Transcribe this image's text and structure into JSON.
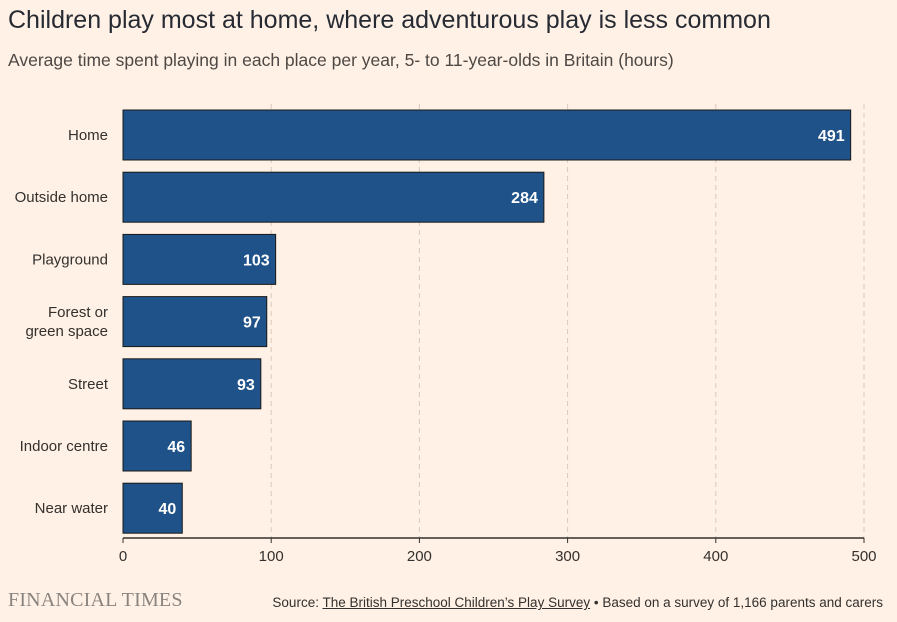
{
  "title": "Children play most at home, where adventurous play is less common",
  "subtitle": "Average time spent playing in each place per year, 5- to 11-year-olds in Britain (hours)",
  "logo": "FINANCIAL TIMES",
  "source": {
    "prefix": "Source: ",
    "link_text": "The British Preschool Children’s Play Survey",
    "suffix": " • Based on a survey of 1,166 parents and carers"
  },
  "colors": {
    "background": "#fff1e5",
    "bar": "#1f5289",
    "grid": "#d9c9bd",
    "axis": "#33302e"
  },
  "chart_data": {
    "type": "bar",
    "orientation": "horizontal",
    "categories": [
      [
        "Home"
      ],
      [
        "Outside home"
      ],
      [
        "Playground"
      ],
      [
        "Forest or",
        "green space"
      ],
      [
        "Street"
      ],
      [
        "Indoor centre"
      ],
      [
        "Near water"
      ]
    ],
    "values": [
      491,
      284,
      103,
      97,
      93,
      46,
      40
    ],
    "xlim": [
      0,
      500
    ],
    "xticks": [
      0,
      100,
      200,
      300,
      400,
      500
    ],
    "grid": true,
    "data_labels": true
  }
}
